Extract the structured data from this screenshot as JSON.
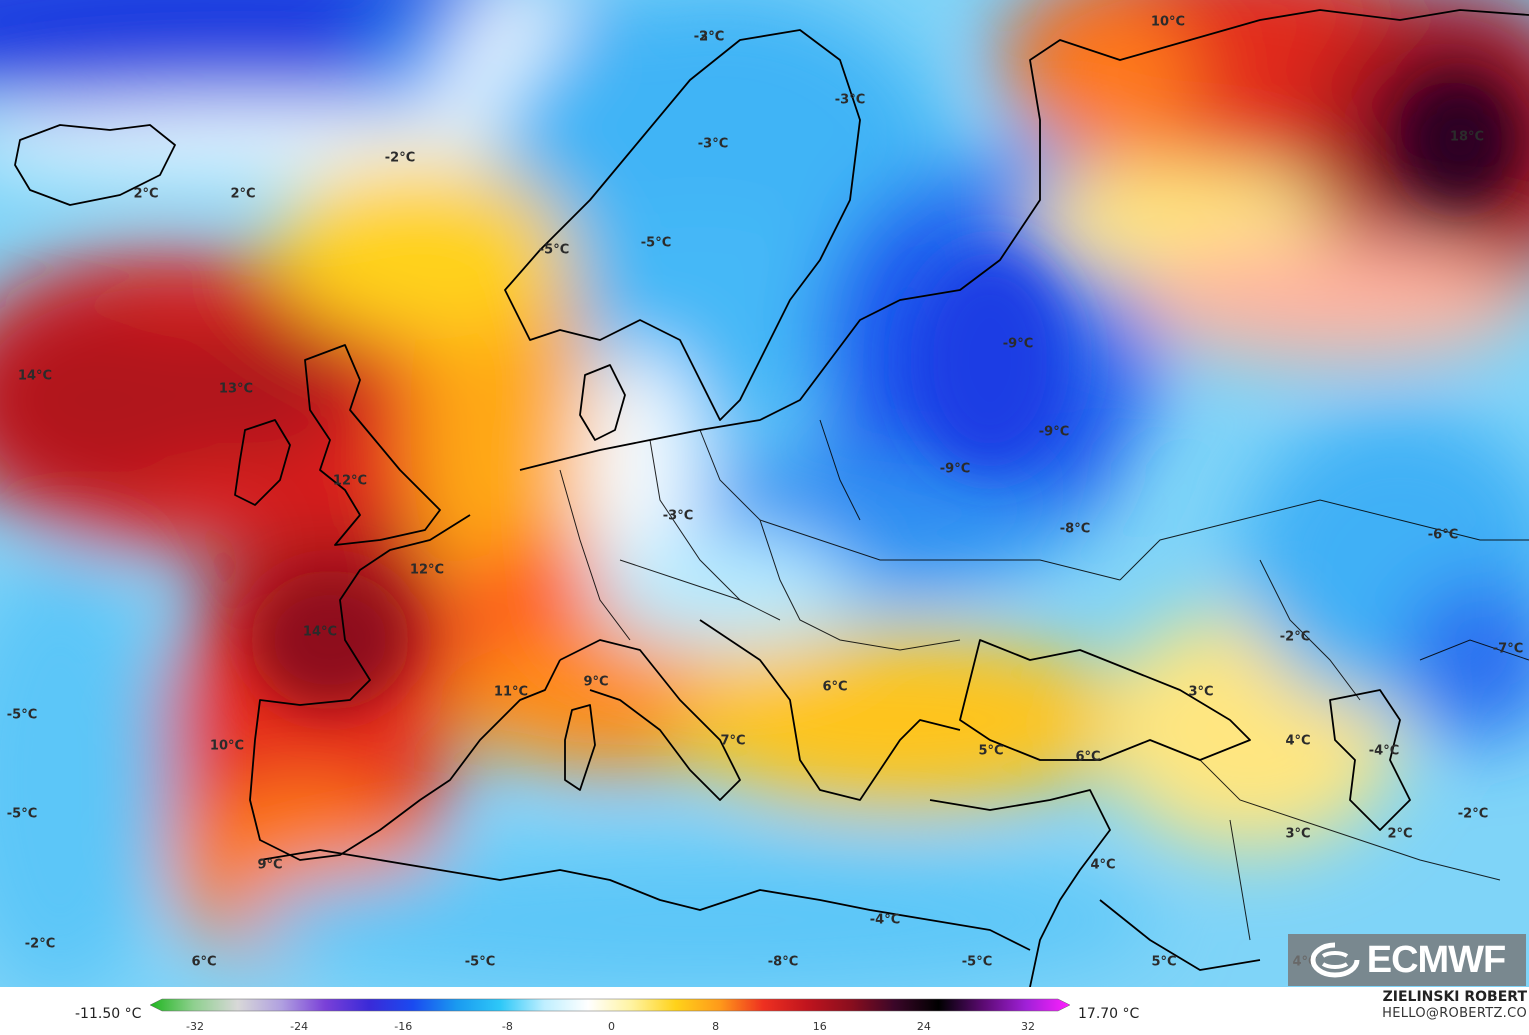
{
  "map": {
    "labels": [
      {
        "text": "10°C",
        "region": "northwest-russia-top"
      },
      {
        "text": "18°C",
        "region": "west-siberia"
      },
      {
        "text": "-2°C",
        "region": "norwegian-sea-north"
      },
      {
        "text": "-3°C",
        "region": "northern-norway"
      },
      {
        "text": "-3°C",
        "region": "northern-finland"
      },
      {
        "text": "-2°C",
        "region": "norwegian-sea"
      },
      {
        "text": "2°C",
        "region": "iceland-south"
      },
      {
        "text": "2°C",
        "region": "iceland-southeast"
      },
      {
        "text": "-3°C",
        "region": "northern-sweden"
      },
      {
        "text": "-5°C",
        "region": "western-norway"
      },
      {
        "text": "-5°C",
        "region": "central-sweden"
      },
      {
        "text": "14°C",
        "region": "north-atlantic-west"
      },
      {
        "text": "13°C",
        "region": "north-atlantic-central"
      },
      {
        "text": "-9°C",
        "region": "western-russia"
      },
      {
        "text": "-9°C",
        "region": "central-russia"
      },
      {
        "text": "12°C",
        "region": "ireland-irish-sea"
      },
      {
        "text": "-9°C",
        "region": "belarus"
      },
      {
        "text": "-3°C",
        "region": "germany-east"
      },
      {
        "text": "-8°C",
        "region": "ukraine"
      },
      {
        "text": "-6°C",
        "region": "kazakhstan-west"
      },
      {
        "text": "12°C",
        "region": "english-channel"
      },
      {
        "text": "14°C",
        "region": "france-west"
      },
      {
        "text": "-2°C",
        "region": "black-sea-east"
      },
      {
        "text": "-7°C",
        "region": "caspian-east"
      },
      {
        "text": "-5°C",
        "region": "atlantic-far-west"
      },
      {
        "text": "9°C",
        "region": "northern-italy"
      },
      {
        "text": "6°C",
        "region": "romania"
      },
      {
        "text": "3°C",
        "region": "black-sea"
      },
      {
        "text": "11°C",
        "region": "gulf-of-lion"
      },
      {
        "text": "10°C",
        "region": "portugal-coast"
      },
      {
        "text": "7°C",
        "region": "southern-italy"
      },
      {
        "text": "5°C",
        "region": "aegean-turkey"
      },
      {
        "text": "6°C",
        "region": "turkey-central"
      },
      {
        "text": "4°C",
        "region": "caucasus"
      },
      {
        "text": "-4°C",
        "region": "caspian-sea"
      },
      {
        "text": "-5°C",
        "region": "atlantic-southwest"
      },
      {
        "text": "9°C",
        "region": "southern-spain"
      },
      {
        "text": "3°C",
        "region": "iraq-north"
      },
      {
        "text": "2°C",
        "region": "iran-north"
      },
      {
        "text": "-2°C",
        "region": "turkmenistan"
      },
      {
        "text": "4°C",
        "region": "eastern-mediterranean"
      },
      {
        "text": "-4°C",
        "region": "libya-coast"
      },
      {
        "text": "-2°C",
        "region": "atlantic-canaries"
      },
      {
        "text": "6°C",
        "region": "morocco"
      },
      {
        "text": "-5°C",
        "region": "algeria"
      },
      {
        "text": "-8°C",
        "region": "tunisia-libya"
      },
      {
        "text": "-5°C",
        "region": "egypt-west"
      },
      {
        "text": "5°C",
        "region": "saudi-north"
      },
      {
        "text": "4°C",
        "region": "iran-south"
      }
    ]
  },
  "logo": {
    "text": "ECMWF"
  },
  "colorbar": {
    "min_label": "-11.50 °C",
    "max_label": "17.70 °C",
    "ticks": [
      "-32",
      "-24",
      "-16",
      "-8",
      "0",
      "8",
      "16",
      "24",
      "32"
    ],
    "stops": [
      "#1fb51f",
      "#8fd08f",
      "#d8d8d8",
      "#b0a0e0",
      "#7a40d8",
      "#3a2ad8",
      "#1a4af0",
      "#1a9af0",
      "#2ec8f8",
      "#bfefff",
      "#ffffff",
      "#fff3a0",
      "#ffd21a",
      "#ff9a1a",
      "#ee3020",
      "#c0141e",
      "#8a0e1e",
      "#3a0628",
      "#000000",
      "#5a0a70",
      "#a020d8",
      "#ff20ff"
    ]
  },
  "author": {
    "name": "ZIELINSKI ROBERT",
    "email": "HELLO@ROBERTZ.CO"
  }
}
